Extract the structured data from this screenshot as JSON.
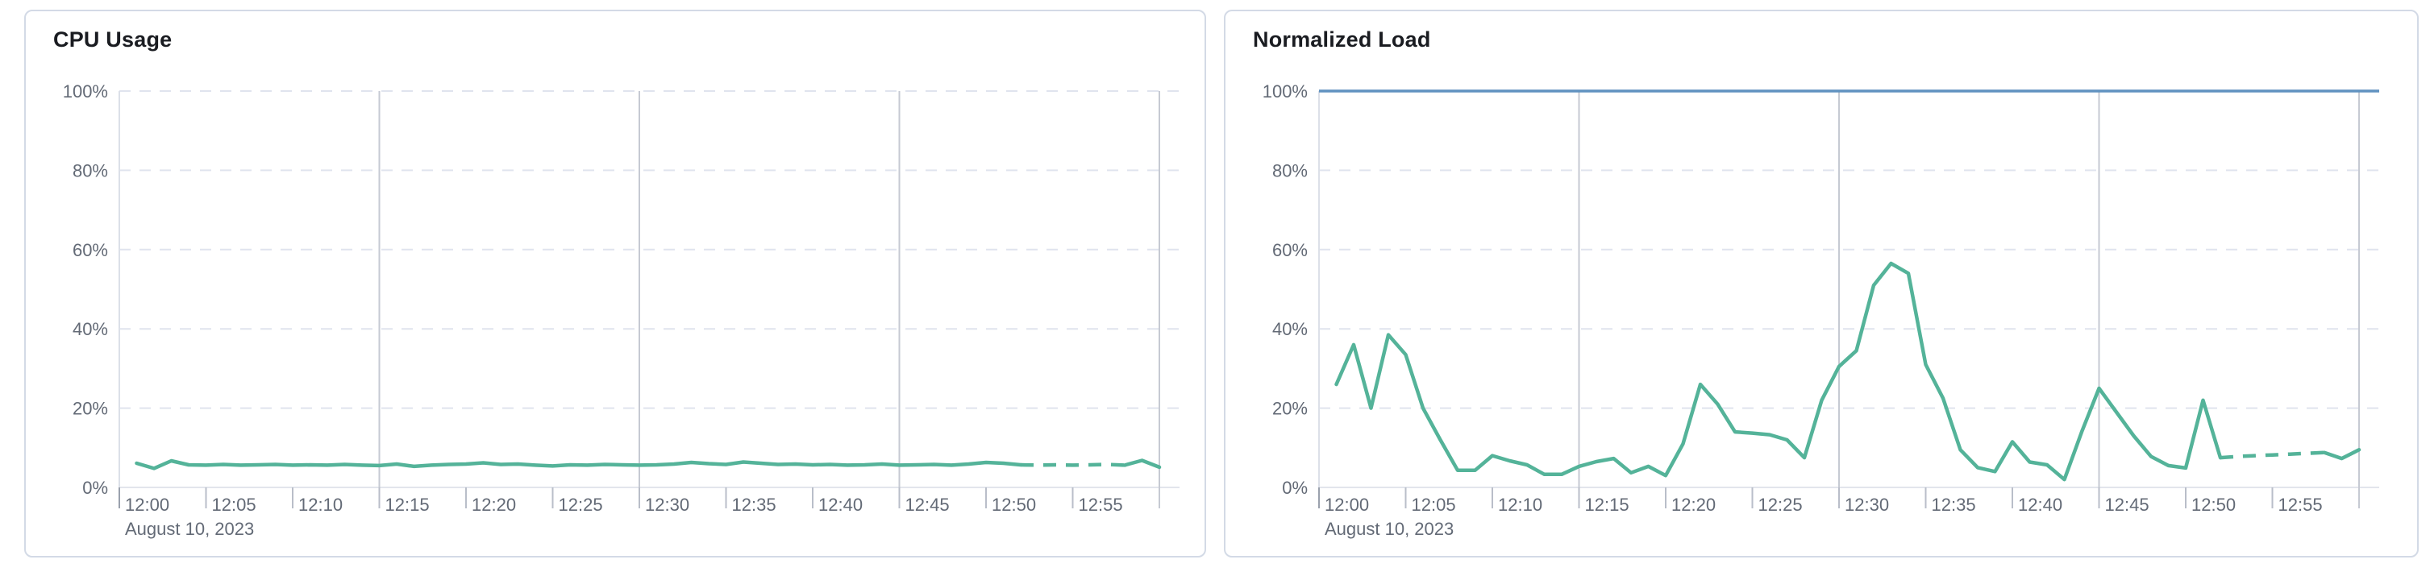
{
  "colors": {
    "series_green": "#54b399",
    "threshold_blue": "#6092c0",
    "grid_dashed": "#e0e4ee",
    "grid_solid": "#c6cad3",
    "axis_baseline": "#e2e5ec",
    "axis_left_line": "#dce0e8",
    "tick": "#b9bec9",
    "axis_label": "#636a76",
    "title": "#1a1c21",
    "card_border": "#d3dae6",
    "card_background": "#ffffff",
    "page_background": "#ffffff"
  },
  "chart_data": [
    {
      "type": "line",
      "title": "CPU Usage",
      "x_axis": {
        "date_label": "August 10, 2023",
        "ticks": [
          {
            "minute": 0,
            "label": "12:00"
          },
          {
            "minute": 5,
            "label": "12:05"
          },
          {
            "minute": 10,
            "label": "12:10"
          },
          {
            "minute": 15,
            "label": "12:15"
          },
          {
            "minute": 20,
            "label": "12:20"
          },
          {
            "minute": 25,
            "label": "12:25"
          },
          {
            "minute": 30,
            "label": "12:30"
          },
          {
            "minute": 35,
            "label": "12:35"
          },
          {
            "minute": 40,
            "label": "12:40"
          },
          {
            "minute": 45,
            "label": "12:45"
          },
          {
            "minute": 50,
            "label": "12:50"
          },
          {
            "minute": 55,
            "label": "12:55"
          }
        ]
      },
      "y_axis": {
        "unit": "%",
        "min": 0,
        "max": 100,
        "ticks": [
          {
            "value": 0,
            "label": "0%"
          },
          {
            "value": 20,
            "label": "20%"
          },
          {
            "value": 40,
            "label": "40%"
          },
          {
            "value": 60,
            "label": "60%"
          },
          {
            "value": 80,
            "label": "80%"
          },
          {
            "value": 100,
            "label": "100%"
          }
        ]
      },
      "grid": {
        "horizontal_dashed_values": [
          20,
          40,
          60,
          80,
          100
        ],
        "vertical_solid_minutes": [
          15,
          30,
          45,
          60
        ]
      },
      "threshold_line": null,
      "series": [
        {
          "name": "CPU Usage",
          "color": "#54b399",
          "start_minute": 1,
          "minute_step": 1,
          "dash_from_index": 51,
          "dash_to_index": 57,
          "values": [
            6.1,
            4.8,
            6.7,
            5.7,
            5.6,
            5.8,
            5.6,
            5.7,
            5.8,
            5.6,
            5.7,
            5.6,
            5.8,
            5.6,
            5.5,
            5.9,
            5.3,
            5.6,
            5.8,
            5.9,
            6.2,
            5.8,
            5.9,
            5.6,
            5.4,
            5.7,
            5.6,
            5.8,
            5.7,
            5.6,
            5.7,
            5.9,
            6.3,
            6.0,
            5.8,
            6.4,
            6.1,
            5.8,
            5.9,
            5.7,
            5.8,
            5.6,
            5.7,
            5.9,
            5.6,
            5.7,
            5.8,
            5.6,
            5.9,
            6.3,
            6.1,
            5.7,
            5.6,
            5.7,
            5.6,
            5.7,
            5.8,
            5.6,
            6.8,
            5.1
          ]
        }
      ]
    },
    {
      "type": "line",
      "title": "Normalized Load",
      "x_axis": {
        "date_label": "August 10, 2023",
        "ticks": [
          {
            "minute": 0,
            "label": "12:00"
          },
          {
            "minute": 5,
            "label": "12:05"
          },
          {
            "minute": 10,
            "label": "12:10"
          },
          {
            "minute": 15,
            "label": "12:15"
          },
          {
            "minute": 20,
            "label": "12:20"
          },
          {
            "minute": 25,
            "label": "12:25"
          },
          {
            "minute": 30,
            "label": "12:30"
          },
          {
            "minute": 35,
            "label": "12:35"
          },
          {
            "minute": 40,
            "label": "12:40"
          },
          {
            "minute": 45,
            "label": "12:45"
          },
          {
            "minute": 50,
            "label": "12:50"
          },
          {
            "minute": 55,
            "label": "12:55"
          }
        ]
      },
      "y_axis": {
        "unit": "%",
        "min": 0,
        "max": 100,
        "ticks": [
          {
            "value": 0,
            "label": "0%"
          },
          {
            "value": 20,
            "label": "20%"
          },
          {
            "value": 40,
            "label": "40%"
          },
          {
            "value": 60,
            "label": "60%"
          },
          {
            "value": 80,
            "label": "80%"
          },
          {
            "value": 100,
            "label": "100%"
          }
        ]
      },
      "grid": {
        "horizontal_dashed_values": [
          20,
          40,
          60,
          80
        ],
        "vertical_solid_minutes": [
          15,
          30,
          45,
          60
        ]
      },
      "threshold_line": {
        "value": 100,
        "color": "#6092c0"
      },
      "series": [
        {
          "name": "Normalized Load",
          "color": "#54b399",
          "start_minute": 1,
          "minute_step": 1,
          "dash_from_index": 51,
          "dash_to_index": 57,
          "values": [
            26,
            36,
            20,
            38.5,
            33.5,
            20,
            12,
            4.3,
            4.3,
            8,
            6.7,
            5.7,
            3.3,
            3.3,
            5.3,
            6.5,
            7.3,
            3.7,
            5.3,
            3,
            11,
            26,
            21,
            14,
            13.7,
            13.3,
            12,
            7.5,
            22,
            30.5,
            34.5,
            51,
            56.5,
            54,
            31,
            22.5,
            9.5,
            5,
            4,
            11.5,
            6.4,
            5.7,
            2,
            14,
            25,
            19,
            13,
            7.8,
            5.5,
            4.9,
            22,
            7.5,
            7.8,
            8,
            8.2,
            8.4,
            8.6,
            8.8,
            7.3,
            9.5
          ]
        }
      ]
    }
  ]
}
